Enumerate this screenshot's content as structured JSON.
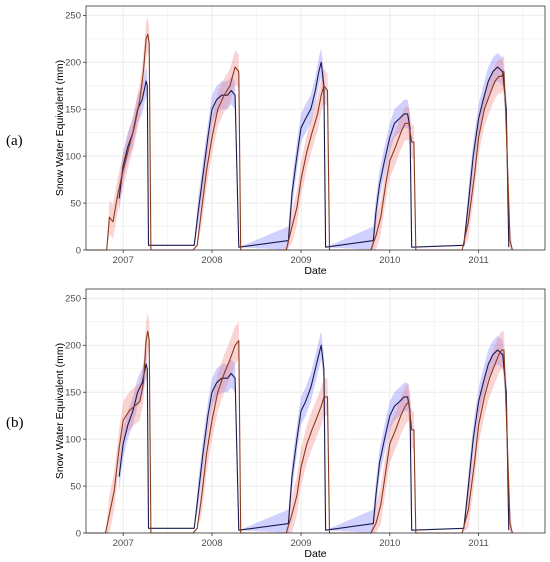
{
  "panels": [
    {
      "label": "(a)",
      "xlabel": "Date",
      "ylabel": "Snow Water Equivalent (mm)"
    },
    {
      "label": "(b)",
      "xlabel": "Date",
      "ylabel": "Snow Water Equivalent (mm)"
    }
  ],
  "colors": {
    "observed_line": "#1a1a4e",
    "observed_band": "#7b7bff",
    "model_line": "#8b3a1a",
    "model_band": "#f08080",
    "grid": "#ebebeb",
    "border": "#333333"
  },
  "chart_data": [
    {
      "type": "line",
      "panel": "a",
      "xlabel": "Date",
      "ylabel": "Snow Water Equivalent (mm)",
      "ylim": [
        0,
        260
      ],
      "y_ticks": [
        0,
        50,
        100,
        150,
        200,
        250
      ],
      "x_range": [
        "2006-08-01",
        "2011-10-01"
      ],
      "x_ticks": [
        {
          "date": "2007-01-01",
          "label": "2007"
        },
        {
          "date": "2008-01-01",
          "label": "2008"
        },
        {
          "date": "2009-01-01",
          "label": "2009"
        },
        {
          "date": "2010-01-01",
          "label": "2010"
        },
        {
          "date": "2011-01-01",
          "label": "2011"
        }
      ],
      "grid": true,
      "series": [
        {
          "role": "observed",
          "x": [
            "2006-12-15",
            "2007-01-01",
            "2007-01-20",
            "2007-02-10",
            "2007-03-01",
            "2007-03-20",
            "2007-04-05",
            "2007-04-10",
            "2007-04-15",
            "2007-10-20",
            "2007-11-05",
            "2007-11-25",
            "2007-12-15",
            "2008-01-01",
            "2008-01-20",
            "2008-02-10",
            "2008-03-05",
            "2008-03-20",
            "2008-04-05",
            "2008-04-12",
            "2008-04-20",
            "2008-11-10",
            "2008-11-25",
            "2008-12-15",
            "2009-01-01",
            "2009-01-20",
            "2009-02-10",
            "2009-03-01",
            "2009-03-15",
            "2009-03-25",
            "2009-04-05",
            "2009-04-12",
            "2009-10-25",
            "2009-11-05",
            "2009-11-20",
            "2009-12-10",
            "2010-01-01",
            "2010-01-20",
            "2010-02-10",
            "2010-03-01",
            "2010-03-15",
            "2010-03-25",
            "2010-04-01",
            "2010-11-01",
            "2010-11-20",
            "2010-12-10",
            "2011-01-01",
            "2011-01-20",
            "2011-02-10",
            "2011-03-01",
            "2011-03-20",
            "2011-04-10",
            "2011-04-25",
            "2011-05-05"
          ],
          "y": [
            55,
            90,
            110,
            125,
            150,
            160,
            180,
            175,
            5,
            5,
            40,
            80,
            120,
            150,
            160,
            165,
            165,
            170,
            165,
            90,
            3,
            10,
            60,
            100,
            130,
            140,
            150,
            170,
            190,
            200,
            175,
            3,
            10,
            40,
            70,
            95,
            120,
            135,
            140,
            145,
            145,
            130,
            3,
            5,
            50,
            100,
            140,
            160,
            180,
            190,
            195,
            190,
            150,
            3
          ],
          "band": 15
        },
        {
          "role": "model",
          "x": [
            "2006-08-01",
            "2006-10-25",
            "2006-11-05",
            "2006-11-20",
            "2006-12-10",
            "2007-01-01",
            "2007-01-25",
            "2007-02-15",
            "2007-03-10",
            "2007-03-25",
            "2007-04-05",
            "2007-04-12",
            "2007-04-18",
            "2007-04-25",
            "2007-10-15",
            "2007-11-01",
            "2007-11-20",
            "2007-12-10",
            "2008-01-01",
            "2008-01-25",
            "2008-02-20",
            "2008-03-15",
            "2008-04-05",
            "2008-04-20",
            "2008-04-28",
            "2008-05-05",
            "2008-11-01",
            "2008-11-25",
            "2008-12-15",
            "2009-01-01",
            "2009-01-25",
            "2009-02-15",
            "2009-03-10",
            "2009-03-25",
            "2009-04-05",
            "2009-04-20",
            "2009-04-28",
            "2009-05-05",
            "2009-10-15",
            "2009-11-05",
            "2009-11-25",
            "2009-12-15",
            "2010-01-01",
            "2010-01-25",
            "2010-02-15",
            "2010-03-05",
            "2010-03-20",
            "2010-04-01",
            "2010-04-10",
            "2010-04-18",
            "2010-10-25",
            "2010-11-20",
            "2010-12-15",
            "2011-01-01",
            "2011-01-25",
            "2011-02-15",
            "2011-03-10",
            "2011-03-25",
            "2011-04-05",
            "2011-04-15",
            "2011-04-22",
            "2011-05-10",
            "2011-05-20"
          ],
          "y": [
            0,
            0,
            35,
            30,
            60,
            85,
            110,
            130,
            160,
            190,
            225,
            230,
            220,
            0,
            0,
            5,
            45,
            85,
            120,
            150,
            165,
            175,
            195,
            190,
            0,
            0,
            0,
            25,
            45,
            75,
            105,
            125,
            145,
            165,
            175,
            170,
            0,
            0,
            0,
            15,
            35,
            70,
            95,
            110,
            125,
            135,
            135,
            115,
            115,
            0,
            0,
            30,
            80,
            120,
            150,
            165,
            180,
            185,
            185,
            190,
            150,
            10,
            0
          ],
          "band": 18
        }
      ]
    },
    {
      "type": "line",
      "panel": "b",
      "xlabel": "Date",
      "ylabel": "Snow Water Equivalent (mm)",
      "ylim": [
        0,
        260
      ],
      "y_ticks": [
        0,
        50,
        100,
        150,
        200,
        250
      ],
      "x_range": [
        "2006-08-01",
        "2011-10-01"
      ],
      "x_ticks": [
        {
          "date": "2007-01-01",
          "label": "2007"
        },
        {
          "date": "2008-01-01",
          "label": "2008"
        },
        {
          "date": "2009-01-01",
          "label": "2009"
        },
        {
          "date": "2010-01-01",
          "label": "2010"
        },
        {
          "date": "2011-01-01",
          "label": "2011"
        }
      ],
      "grid": true,
      "series": [
        {
          "role": "observed",
          "x": [
            "2006-12-15",
            "2007-01-01",
            "2007-01-20",
            "2007-02-10",
            "2007-03-01",
            "2007-03-20",
            "2007-04-05",
            "2007-04-10",
            "2007-04-15",
            "2007-10-20",
            "2007-11-05",
            "2007-11-25",
            "2007-12-15",
            "2008-01-01",
            "2008-01-20",
            "2008-02-10",
            "2008-03-05",
            "2008-03-20",
            "2008-04-05",
            "2008-04-12",
            "2008-04-20",
            "2008-11-10",
            "2008-11-25",
            "2008-12-15",
            "2009-01-01",
            "2009-01-20",
            "2009-02-10",
            "2009-03-01",
            "2009-03-15",
            "2009-03-25",
            "2009-04-05",
            "2009-04-12",
            "2009-10-25",
            "2009-11-05",
            "2009-11-20",
            "2009-12-10",
            "2010-01-01",
            "2010-01-20",
            "2010-02-10",
            "2010-03-01",
            "2010-03-15",
            "2010-03-25",
            "2010-04-01",
            "2010-11-01",
            "2010-11-20",
            "2010-12-10",
            "2011-01-01",
            "2011-01-20",
            "2011-02-10",
            "2011-03-01",
            "2011-03-20",
            "2011-04-10",
            "2011-04-25",
            "2011-05-05"
          ],
          "y": [
            60,
            95,
            115,
            130,
            150,
            160,
            180,
            175,
            5,
            5,
            40,
            85,
            125,
            150,
            160,
            165,
            165,
            170,
            165,
            90,
            3,
            10,
            60,
            100,
            130,
            140,
            155,
            175,
            190,
            200,
            175,
            3,
            10,
            40,
            75,
            100,
            125,
            135,
            140,
            145,
            145,
            130,
            3,
            5,
            50,
            100,
            140,
            160,
            180,
            190,
            195,
            190,
            150,
            3
          ],
          "band": 15
        },
        {
          "role": "model",
          "x": [
            "2006-08-01",
            "2006-10-20",
            "2006-11-05",
            "2006-11-25",
            "2006-12-15",
            "2007-01-01",
            "2007-01-25",
            "2007-02-15",
            "2007-03-10",
            "2007-03-25",
            "2007-04-05",
            "2007-04-12",
            "2007-04-18",
            "2007-04-25",
            "2007-10-15",
            "2007-11-01",
            "2007-11-20",
            "2007-12-10",
            "2008-01-01",
            "2008-01-25",
            "2008-02-20",
            "2008-03-15",
            "2008-04-05",
            "2008-04-20",
            "2008-04-28",
            "2008-05-05",
            "2008-11-01",
            "2008-11-25",
            "2008-12-15",
            "2009-01-01",
            "2009-01-25",
            "2009-02-15",
            "2009-03-10",
            "2009-03-25",
            "2009-04-05",
            "2009-04-20",
            "2009-04-28",
            "2009-05-05",
            "2009-10-15",
            "2009-11-05",
            "2009-11-25",
            "2009-12-15",
            "2010-01-01",
            "2010-01-25",
            "2010-02-15",
            "2010-03-05",
            "2010-03-20",
            "2010-04-01",
            "2010-04-10",
            "2010-04-18",
            "2010-10-25",
            "2010-11-20",
            "2010-12-15",
            "2011-01-01",
            "2011-01-25",
            "2011-02-15",
            "2011-03-10",
            "2011-03-25",
            "2011-04-05",
            "2011-04-15",
            "2011-04-22",
            "2011-05-10",
            "2011-05-20"
          ],
          "y": [
            0,
            0,
            20,
            45,
            90,
            120,
            130,
            135,
            140,
            160,
            205,
            215,
            205,
            0,
            0,
            5,
            40,
            85,
            120,
            150,
            170,
            185,
            200,
            205,
            0,
            0,
            0,
            20,
            40,
            70,
            95,
            110,
            125,
            135,
            145,
            145,
            0,
            0,
            0,
            10,
            30,
            65,
            95,
            110,
            125,
            135,
            140,
            110,
            110,
            0,
            0,
            25,
            75,
            115,
            145,
            165,
            180,
            190,
            195,
            195,
            150,
            10,
            0
          ],
          "band": 20
        }
      ]
    }
  ]
}
